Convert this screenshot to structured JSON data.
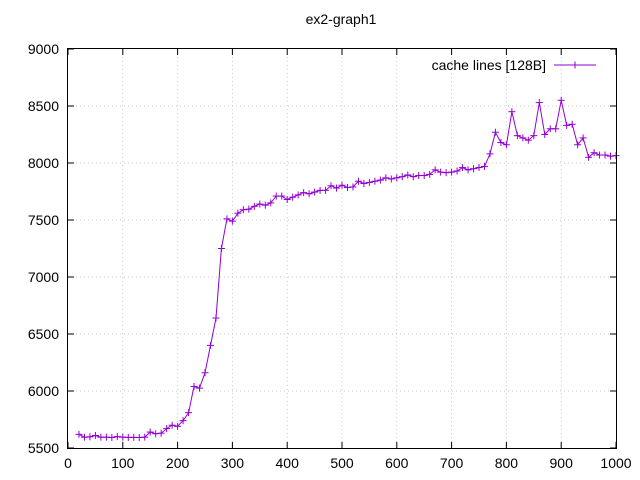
{
  "chart_data": {
    "type": "line",
    "title": "ex2-graph1",
    "xlabel": "",
    "ylabel": "",
    "xlim": [
      0,
      1000
    ],
    "ylim": [
      5500,
      9000
    ],
    "xticks": [
      0,
      100,
      200,
      300,
      400,
      500,
      600,
      700,
      800,
      900,
      1000
    ],
    "yticks": [
      5500,
      6000,
      6500,
      7000,
      7500,
      8000,
      8500,
      9000
    ],
    "grid": true,
    "legend_position": "top-right",
    "series": [
      {
        "name": "cache lines [128B]",
        "color": "#9400d3",
        "marker": "plus",
        "x": [
          20,
          30,
          40,
          50,
          60,
          70,
          80,
          90,
          100,
          110,
          120,
          130,
          140,
          150,
          160,
          170,
          180,
          190,
          200,
          210,
          220,
          230,
          240,
          250,
          260,
          270,
          280,
          290,
          300,
          310,
          320,
          330,
          340,
          350,
          360,
          370,
          380,
          390,
          400,
          410,
          420,
          430,
          440,
          450,
          460,
          470,
          480,
          490,
          500,
          510,
          520,
          530,
          540,
          550,
          560,
          570,
          580,
          590,
          600,
          610,
          620,
          630,
          640,
          650,
          660,
          670,
          680,
          690,
          700,
          710,
          720,
          730,
          740,
          750,
          760,
          770,
          780,
          790,
          800,
          810,
          820,
          830,
          840,
          850,
          860,
          870,
          880,
          890,
          900,
          910,
          920,
          930,
          940,
          950,
          960,
          970,
          980,
          990,
          1000
        ],
        "y": [
          5620,
          5595,
          5598,
          5610,
          5595,
          5595,
          5592,
          5600,
          5595,
          5593,
          5593,
          5592,
          5595,
          5640,
          5625,
          5630,
          5670,
          5700,
          5690,
          5740,
          5810,
          6040,
          6025,
          6160,
          6400,
          6640,
          7250,
          7510,
          7490,
          7560,
          7590,
          7595,
          7620,
          7640,
          7630,
          7650,
          7710,
          7710,
          7680,
          7700,
          7720,
          7740,
          7730,
          7745,
          7760,
          7760,
          7800,
          7780,
          7805,
          7785,
          7790,
          7840,
          7820,
          7830,
          7840,
          7850,
          7870,
          7860,
          7870,
          7880,
          7895,
          7880,
          7890,
          7890,
          7900,
          7940,
          7920,
          7915,
          7920,
          7930,
          7960,
          7940,
          7950,
          7960,
          7970,
          8080,
          8270,
          8180,
          8160,
          8450,
          8240,
          8220,
          8200,
          8240,
          8530,
          8250,
          8300,
          8300,
          8550,
          8330,
          8340,
          8160,
          8220,
          8050,
          8090,
          8070,
          8070,
          8060,
          8065
        ]
      }
    ]
  }
}
